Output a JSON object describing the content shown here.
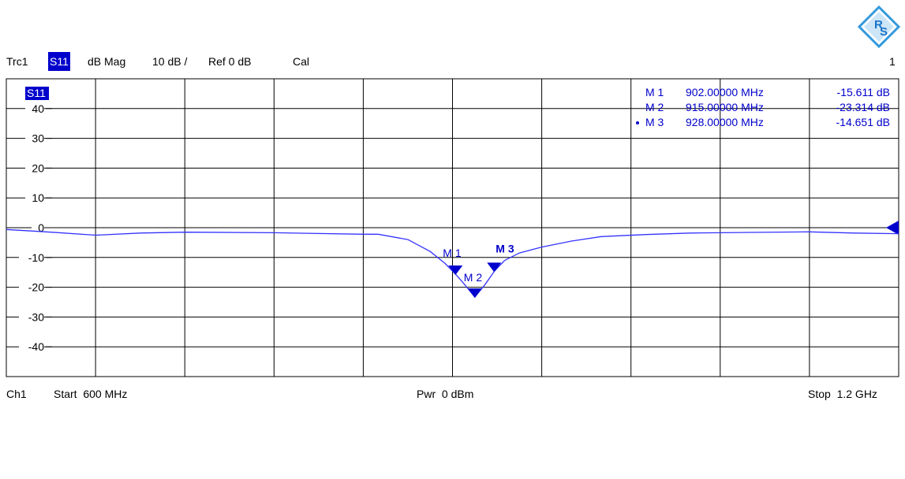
{
  "header": {
    "trace": "Trc1",
    "param": "S11",
    "format": "dB Mag",
    "scale": "10 dB /",
    "ref": "Ref 0 dB",
    "cal": "Cal",
    "window_num": "1"
  },
  "trace_badge": "S11",
  "footer": {
    "channel": "Ch1",
    "start": "Start  600 MHz",
    "power": "Pwr  0 dBm",
    "stop": "Stop  1.2 GHz"
  },
  "logo_text": "RS",
  "marker_table": [
    {
      "name": "M 1",
      "freq": "902.00000 MHz",
      "value": "-15.611 dB",
      "active": false
    },
    {
      "name": "M 2",
      "freq": "915.00000 MHz",
      "value": "-23.314 dB",
      "active": false
    },
    {
      "name": "M 3",
      "freq": "928.00000 MHz",
      "value": "-14.651 dB",
      "active": true
    }
  ],
  "colors": {
    "trace": "#3333ff",
    "marker": "#0000cc",
    "grid": "#000000",
    "badge_bg": "#0000cc"
  },
  "chart_data": {
    "type": "line",
    "x_unit": "MHz",
    "y_unit": "dB",
    "xlim": [
      600,
      1200
    ],
    "ylim": [
      -50,
      50
    ],
    "yticks": [
      40,
      30,
      20,
      10,
      0,
      -10,
      -20,
      -30,
      -40
    ],
    "ytick_labels": [
      "40",
      "30",
      "20",
      "10",
      "0",
      "-10",
      "-20",
      "-30",
      "-40"
    ],
    "grid": true,
    "ref_level": 0,
    "series": [
      {
        "x": [
          600,
          630,
          660,
          690,
          720,
          780,
          840,
          850,
          870,
          885,
          895,
          902,
          908,
          915,
          922,
          928,
          935,
          945,
          960,
          980,
          1000,
          1030,
          1060,
          1100,
          1140,
          1170,
          1200
        ],
        "y": [
          -0.6,
          -1.5,
          -2.5,
          -1.8,
          -1.5,
          -1.7,
          -2.2,
          -2.2,
          -4,
          -8,
          -12,
          -15.6,
          -19,
          -23.3,
          -19,
          -14.7,
          -11,
          -8.5,
          -6.5,
          -4.5,
          -3,
          -2.3,
          -1.8,
          -1.6,
          -1.4,
          -1.8,
          -2
        ]
      }
    ],
    "markers": [
      {
        "label": "M 1",
        "x": 902,
        "y": -15.611
      },
      {
        "label": "M 2",
        "x": 915,
        "y": -23.314
      },
      {
        "label": "M 3",
        "x": 928,
        "y": -14.651
      }
    ]
  }
}
